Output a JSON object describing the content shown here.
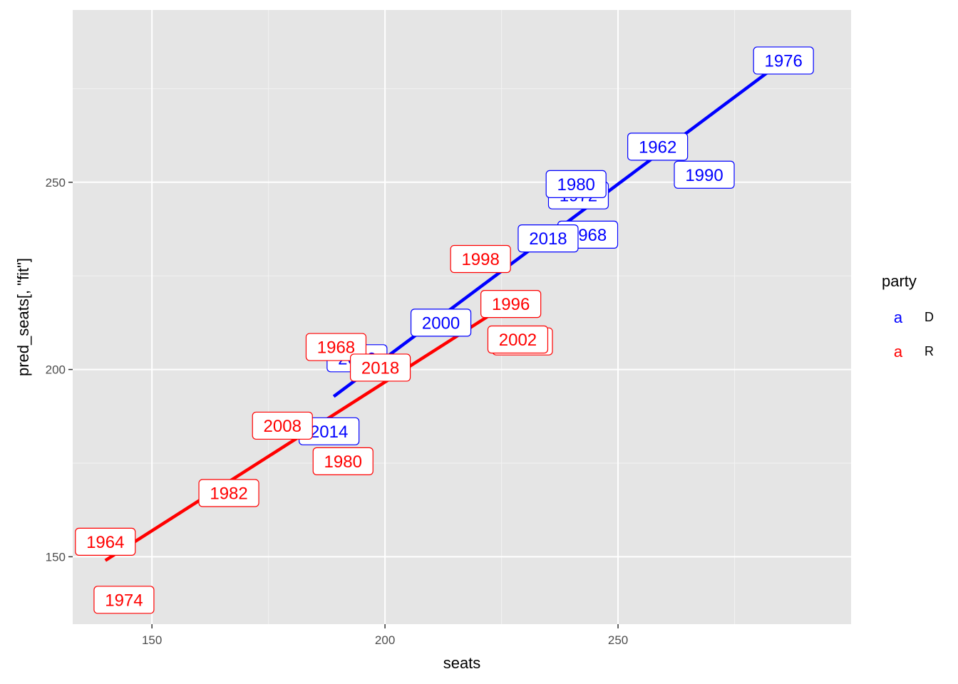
{
  "chart_data": {
    "type": "scatter",
    "title": "",
    "xlabel": "seats",
    "ylabel": "pred_seats[, \"fit\"]",
    "xlim": [
      133,
      300
    ],
    "ylim": [
      132,
      296
    ],
    "x_major_ticks": [
      150,
      200,
      250
    ],
    "y_major_ticks": [
      150,
      200,
      250
    ],
    "x_minor_ticks": [
      175,
      225,
      275
    ],
    "y_minor_ticks": [
      175,
      225,
      275
    ],
    "x_tick_labels": [
      "150",
      "200",
      "250"
    ],
    "y_tick_labels": [
      "150",
      "200",
      "250"
    ],
    "grid": true,
    "legend": {
      "title": "party",
      "placement": "right",
      "key_glyph": "a",
      "entries": [
        {
          "key": "a",
          "label": "D",
          "color": "#0000ff"
        },
        {
          "key": "a",
          "label": "R",
          "color": "#ff0000"
        }
      ]
    },
    "colors": {
      "D": "#0000ff",
      "R": "#ff0000",
      "panel": "#e5e5e5",
      "grid": "#ffffff"
    },
    "series": [
      {
        "name": "D",
        "line": {
          "x": [
            189,
            285.5
          ],
          "y": [
            192.8,
            282.5
          ]
        },
        "points": [
          {
            "label": "1976",
            "x": 285.5,
            "y": 282.5
          },
          {
            "label": "1962",
            "x": 258.5,
            "y": 259.5
          },
          {
            "label": "1990",
            "x": 268.5,
            "y": 252
          },
          {
            "label": "1972",
            "x": 241.5,
            "y": 246.5
          },
          {
            "label": "1980",
            "x": 241,
            "y": 249.5
          },
          {
            "label": "1968",
            "x": 243.5,
            "y": 236
          },
          {
            "label": "2018",
            "x": 235,
            "y": 235
          },
          {
            "label": "2000",
            "x": 212,
            "y": 212.5
          },
          {
            "label": "2006",
            "x": 194,
            "y": 203
          },
          {
            "label": "2014",
            "x": 188,
            "y": 183.5
          }
        ]
      },
      {
        "name": "R",
        "line": {
          "x": [
            140,
            225
          ],
          "y": [
            149,
            216.5
          ]
        },
        "points": [
          {
            "label": "1964",
            "x": 140,
            "y": 154
          },
          {
            "label": "1974",
            "x": 144,
            "y": 138.5
          },
          {
            "label": "1982",
            "x": 166.5,
            "y": 167
          },
          {
            "label": "2008",
            "x": 178,
            "y": 185
          },
          {
            "label": "1980",
            "x": 191,
            "y": 175.5
          },
          {
            "label": "1968",
            "x": 189.5,
            "y": 206
          },
          {
            "label": "2018",
            "x": 199,
            "y": 200.5
          },
          {
            "label": "1998",
            "x": 220.5,
            "y": 229.5
          },
          {
            "label": "1996",
            "x": 227,
            "y": 217.5
          },
          {
            "label": "2004",
            "x": 229.5,
            "y": 207.5
          },
          {
            "label": "2002",
            "x": 228.5,
            "y": 208
          }
        ]
      }
    ]
  }
}
